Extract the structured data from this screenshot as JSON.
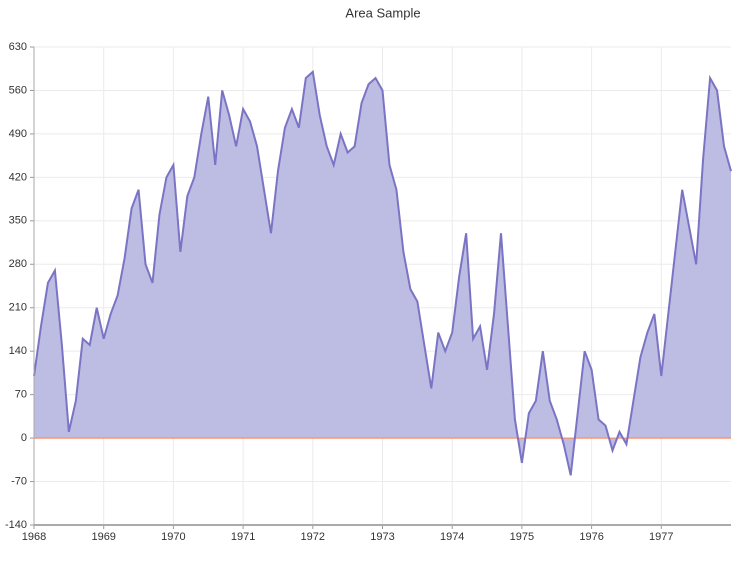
{
  "chart_data": {
    "type": "area",
    "title": "Area Sample",
    "x": [
      1968.0,
      1968.1,
      1968.2,
      1968.3,
      1968.4,
      1968.5,
      1968.6,
      1968.7,
      1968.8,
      1968.9,
      1969.0,
      1969.1,
      1969.2,
      1969.3,
      1969.4,
      1969.5,
      1969.6,
      1969.7,
      1969.8,
      1969.9,
      1970.0,
      1970.1,
      1970.2,
      1970.3,
      1970.4,
      1970.5,
      1970.6,
      1970.7,
      1970.8,
      1970.9,
      1971.0,
      1971.1,
      1971.2,
      1971.3,
      1971.4,
      1971.5,
      1971.6,
      1971.7,
      1971.8,
      1971.9,
      1972.0,
      1972.1,
      1972.2,
      1972.3,
      1972.4,
      1972.5,
      1972.6,
      1972.7,
      1972.8,
      1972.9,
      1973.0,
      1973.1,
      1973.2,
      1973.3,
      1973.4,
      1973.5,
      1973.6,
      1973.7,
      1973.8,
      1973.9,
      1974.0,
      1974.1,
      1974.2,
      1974.3,
      1974.4,
      1974.5,
      1974.6,
      1974.7,
      1974.8,
      1974.9,
      1975.0,
      1975.1,
      1975.2,
      1975.3,
      1975.4,
      1975.5,
      1975.6,
      1975.7,
      1975.8,
      1975.9,
      1976.0,
      1976.1,
      1976.2,
      1976.3,
      1976.4,
      1976.5,
      1976.6,
      1976.7,
      1976.8,
      1976.9,
      1977.0,
      1977.1,
      1977.2,
      1977.3,
      1977.4,
      1977.5,
      1977.6,
      1977.7,
      1977.8,
      1977.9,
      1978.0
    ],
    "values": [
      100,
      180,
      250,
      270,
      150,
      10,
      60,
      160,
      150,
      210,
      160,
      200,
      230,
      290,
      370,
      400,
      280,
      250,
      360,
      420,
      440,
      300,
      390,
      420,
      490,
      550,
      440,
      560,
      520,
      470,
      530,
      510,
      470,
      400,
      330,
      430,
      500,
      530,
      500,
      580,
      590,
      520,
      470,
      440,
      490,
      460,
      470,
      540,
      570,
      580,
      560,
      440,
      400,
      300,
      240,
      220,
      150,
      80,
      170,
      140,
      170,
      260,
      330,
      160,
      180,
      110,
      200,
      330,
      180,
      30,
      -40,
      40,
      60,
      140,
      60,
      30,
      -10,
      -60,
      40,
      140,
      110,
      30,
      20,
      -20,
      10,
      -10,
      60,
      130,
      170,
      200,
      100,
      200,
      300,
      400,
      340,
      280,
      450,
      580,
      560,
      470,
      430
    ],
    "color": "#7b74c4",
    "fill": "#bdbce2",
    "zero_line_color": "#ff7f50",
    "xlim": [
      1968,
      1978
    ],
    "xticks": [
      1968,
      1969,
      1970,
      1971,
      1972,
      1973,
      1974,
      1975,
      1976,
      1977
    ],
    "ylim": [
      -140,
      630
    ],
    "yticks": [
      -140,
      -70,
      0,
      70,
      140,
      210,
      280,
      350,
      420,
      490,
      560,
      630
    ],
    "grid": true
  }
}
